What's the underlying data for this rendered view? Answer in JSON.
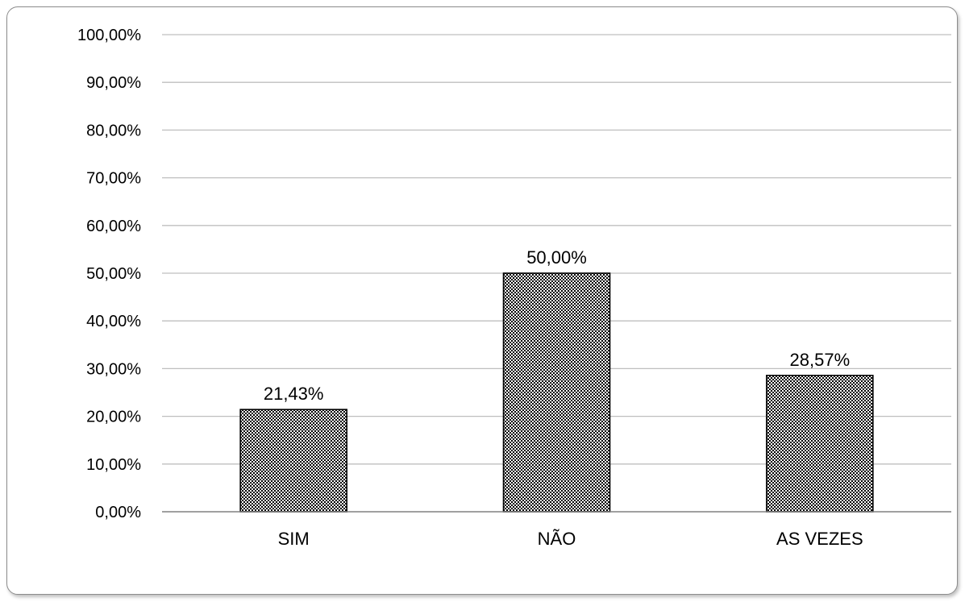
{
  "chart_data": {
    "type": "bar",
    "categories": [
      "SIM",
      "NÃO",
      "AS VEZES"
    ],
    "values": [
      21.43,
      50.0,
      28.57
    ],
    "data_labels": [
      "21,43%",
      "50,00%",
      "28,57%"
    ],
    "y_ticks": [
      0,
      10,
      20,
      30,
      40,
      50,
      60,
      70,
      80,
      90,
      100
    ],
    "y_tick_labels": [
      "0,00%",
      "10,00%",
      "20,00%",
      "30,00%",
      "40,00%",
      "50,00%",
      "60,00%",
      "70,00%",
      "80,00%",
      "90,00%",
      "100,00%"
    ],
    "ylim": [
      0,
      100
    ],
    "grid": true,
    "legend": "none",
    "title": "",
    "xlabel": "",
    "ylabel": "",
    "colors": {
      "bar_fill": "#ffffff",
      "bar_pattern": "#000000",
      "bar_stroke": "#000000",
      "gridline": "#bfbfbf",
      "axis": "#808080"
    }
  }
}
